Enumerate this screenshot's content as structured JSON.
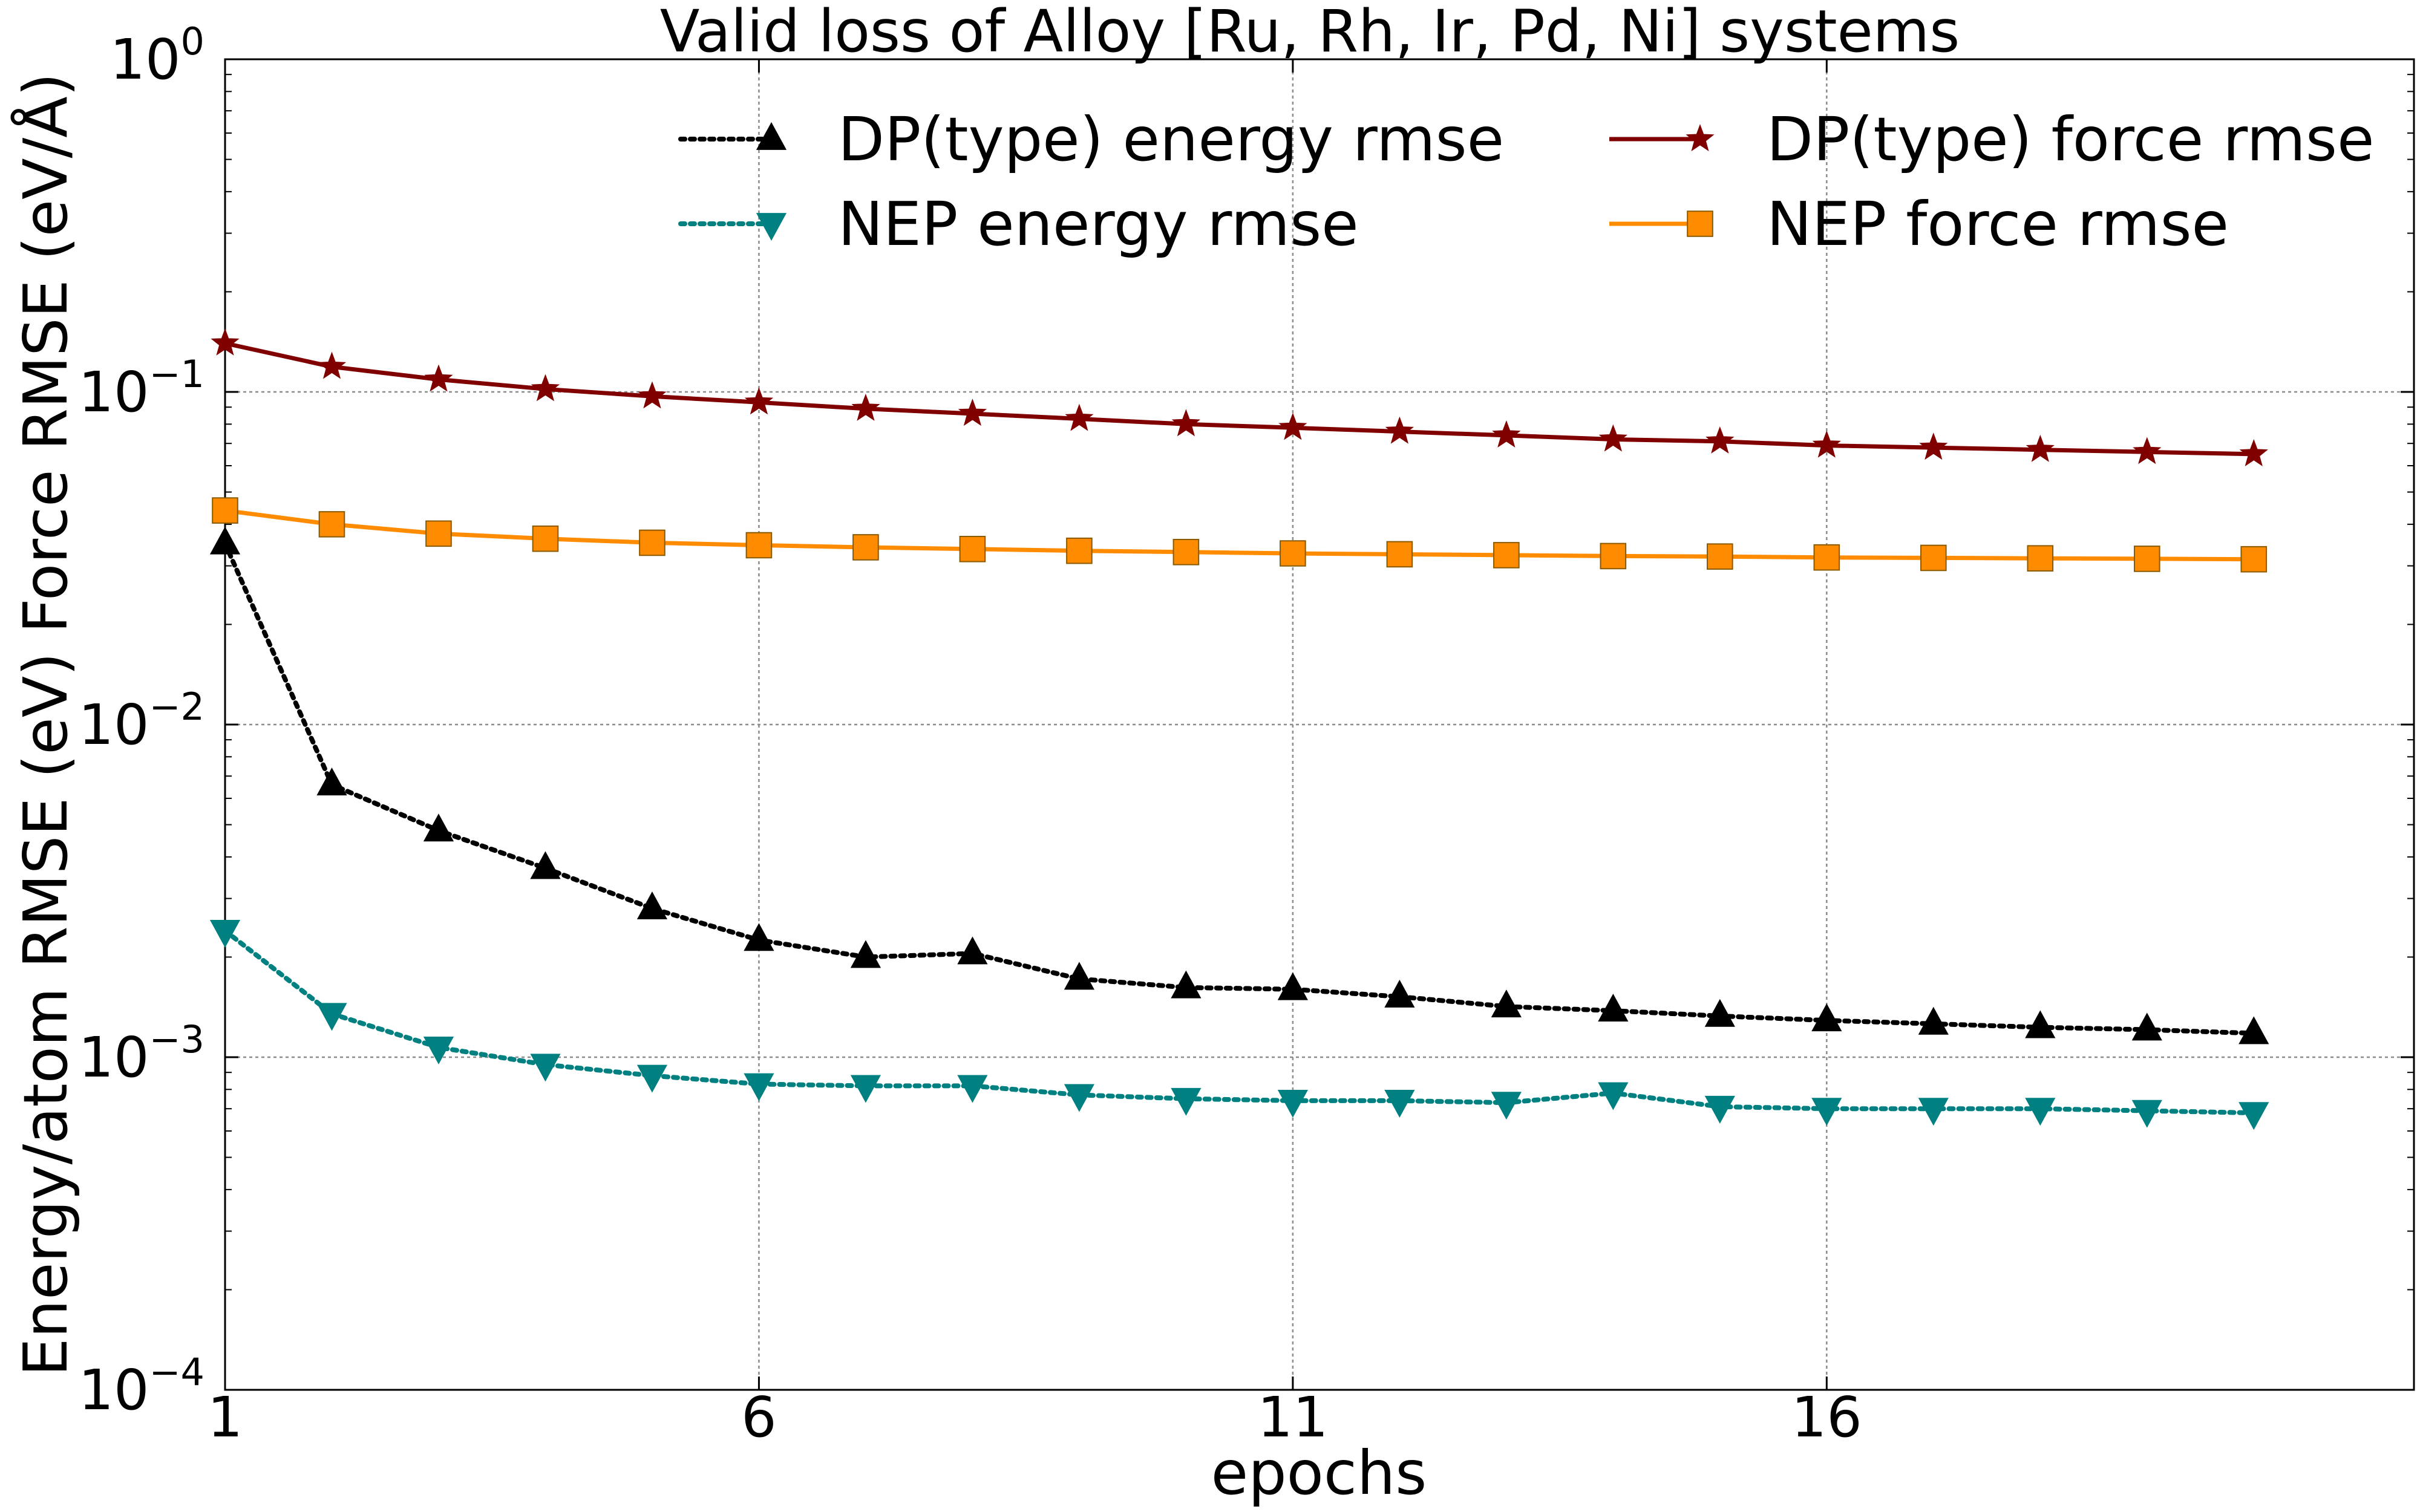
{
  "chart_data": {
    "type": "line",
    "title": "Valid loss of Alloy [Ru, Rh, Ir, Pd, Ni] systems",
    "xlabel": "epochs",
    "ylabel": "Energy/atom RMSE (eV)  Force RMSE (eV/Å)",
    "xlim": [
      1,
      21.5
    ],
    "ylim": [
      0.0001,
      1
    ],
    "yscale": "log",
    "grid": true,
    "legend_position": "top-right",
    "legend_columns": 2,
    "x_ticks": [
      1,
      6,
      11,
      16
    ],
    "x_tick_labels": [
      "1",
      "6",
      "11",
      "16"
    ],
    "y_ticks": [
      0.0001,
      0.001,
      0.01,
      0.1,
      1
    ],
    "y_tick_bases": [
      "10",
      "10",
      "10",
      "10",
      "10"
    ],
    "y_tick_exponents": [
      "−4",
      "−3",
      "−2",
      "−1",
      "0"
    ],
    "x": [
      1,
      2,
      3,
      4,
      5,
      6,
      7,
      8,
      9,
      10,
      11,
      12,
      13,
      14,
      15,
      16,
      17,
      18,
      19,
      20
    ],
    "series": [
      {
        "name": "DP(type) energy rmse",
        "color": "#000000",
        "marker": "triangle-up",
        "line_style": "dotted",
        "values": [
          0.035,
          0.0066,
          0.0048,
          0.0037,
          0.0028,
          0.00225,
          0.002,
          0.00205,
          0.00172,
          0.00162,
          0.0016,
          0.00152,
          0.00142,
          0.00138,
          0.00133,
          0.00129,
          0.00126,
          0.00123,
          0.00121,
          0.00118
        ]
      },
      {
        "name": "NEP energy rmse",
        "color": "#008080",
        "marker": "triangle-down",
        "line_style": "dotted",
        "values": [
          0.0024,
          0.00135,
          0.00107,
          0.00095,
          0.00088,
          0.00083,
          0.00082,
          0.00082,
          0.00077,
          0.00075,
          0.00074,
          0.00074,
          0.00073,
          0.00078,
          0.00071,
          0.0007,
          0.0007,
          0.0007,
          0.00069,
          0.00068
        ]
      },
      {
        "name": "DP(type) force rmse",
        "color": "#800000",
        "marker": "star",
        "line_style": "solid",
        "values": [
          0.14,
          0.119,
          0.109,
          0.102,
          0.097,
          0.093,
          0.089,
          0.086,
          0.083,
          0.08,
          0.078,
          0.076,
          0.074,
          0.072,
          0.071,
          0.069,
          0.068,
          0.067,
          0.066,
          0.065
        ]
      },
      {
        "name": "NEP force rmse",
        "color": "#FF8C00",
        "marker": "square",
        "line_style": "solid",
        "values": [
          0.044,
          0.04,
          0.0375,
          0.0362,
          0.0352,
          0.0346,
          0.0341,
          0.0337,
          0.0333,
          0.033,
          0.0327,
          0.0325,
          0.0323,
          0.0321,
          0.032,
          0.0318,
          0.0317,
          0.0316,
          0.0315,
          0.0314
        ]
      }
    ]
  }
}
